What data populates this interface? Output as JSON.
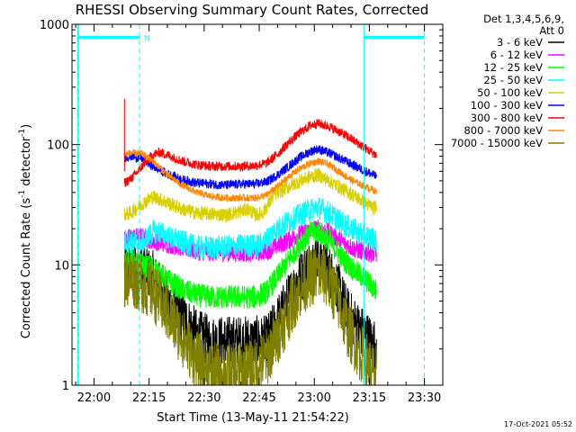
{
  "chart_data": {
    "type": "line",
    "title": "RHESSI Observing Summary Count Rates, Corrected",
    "xlabel": "Start Time (13-May-11 21:54:22)",
    "ylabel": "Corrected Count Rate (s-1 detector-1)",
    "ylabel_parts": {
      "main": "Corrected Count Rate (s",
      "exp1": "-1",
      "mid": " detector",
      "exp2": "-1",
      "close": ")"
    },
    "y_scale": "log",
    "ylim": [
      1,
      1000
    ],
    "xlim_minutes": [
      -6,
      95
    ],
    "x_ticks": [
      {
        "label": "22:00",
        "minute": 0
      },
      {
        "label": "22:15",
        "minute": 15
      },
      {
        "label": "22:30",
        "minute": 30
      },
      {
        "label": "22:45",
        "minute": 45
      },
      {
        "label": "23:00",
        "minute": 60
      },
      {
        "label": "23:15",
        "minute": 75
      },
      {
        "label": "23:30",
        "minute": 90
      }
    ],
    "y_ticks": [
      {
        "label": "1",
        "value": 1
      },
      {
        "label": "10",
        "value": 10
      },
      {
        "label": "100",
        "value": 100
      },
      {
        "label": "1000",
        "value": 1000
      }
    ],
    "legend": {
      "header": [
        "Det 1,3,4,5,6,9,",
        "Att 0"
      ],
      "placement": "right"
    },
    "series": [
      {
        "name": "3 - 6 keV",
        "color": "#000000",
        "noise": 0.22,
        "values": [
          [
            8.3,
            9
          ],
          [
            10,
            10
          ],
          [
            13,
            9.5
          ],
          [
            16,
            8
          ],
          [
            20,
            5
          ],
          [
            24,
            3.8
          ],
          [
            28,
            2.6
          ],
          [
            32,
            2.3
          ],
          [
            36,
            2.3
          ],
          [
            40,
            2.3
          ],
          [
            44,
            2.3
          ],
          [
            47,
            2.3
          ],
          [
            49,
            3
          ],
          [
            52,
            4.5
          ],
          [
            55,
            7
          ],
          [
            58,
            9.5
          ],
          [
            61,
            11
          ],
          [
            63,
            10
          ],
          [
            66,
            7
          ],
          [
            69,
            4
          ],
          [
            72,
            3
          ],
          [
            76,
            2.2
          ],
          [
            77,
            2.2
          ]
        ]
      },
      {
        "name": "6 - 12 keV",
        "color": "#ff00ff",
        "noise": 0.08,
        "values": [
          [
            8.3,
            16
          ],
          [
            10,
            17
          ],
          [
            13,
            17
          ],
          [
            16,
            16
          ],
          [
            20,
            15
          ],
          [
            24,
            14
          ],
          [
            28,
            13
          ],
          [
            32,
            12.8
          ],
          [
            36,
            12.8
          ],
          [
            40,
            12.6
          ],
          [
            44,
            12.8
          ],
          [
            47,
            13
          ],
          [
            50,
            14.5
          ],
          [
            53,
            16
          ],
          [
            56,
            18
          ],
          [
            59,
            19.5
          ],
          [
            61,
            20
          ],
          [
            64,
            18.5
          ],
          [
            67,
            16
          ],
          [
            70,
            14
          ],
          [
            73,
            13
          ],
          [
            76,
            12.5
          ],
          [
            77,
            12.5
          ]
        ]
      },
      {
        "name": "12 - 25 keV",
        "color": "#00ff00",
        "noise": 0.1,
        "values": [
          [
            8.3,
            10
          ],
          [
            10,
            11
          ],
          [
            13,
            10
          ],
          [
            16,
            9.5
          ],
          [
            20,
            7.5
          ],
          [
            24,
            6.2
          ],
          [
            28,
            5.6
          ],
          [
            32,
            5.4
          ],
          [
            36,
            5.4
          ],
          [
            40,
            5.4
          ],
          [
            44,
            5.4
          ],
          [
            47,
            6
          ],
          [
            50,
            8
          ],
          [
            53,
            11
          ],
          [
            56,
            15
          ],
          [
            59,
            18.5
          ],
          [
            61,
            19
          ],
          [
            64,
            16
          ],
          [
            67,
            12
          ],
          [
            70,
            9.5
          ],
          [
            73,
            8
          ],
          [
            76,
            6.5
          ],
          [
            77,
            6
          ]
        ]
      },
      {
        "name": "25 - 50 keV",
        "color": "#00ffff",
        "noise": 0.1,
        "values": [
          [
            8.3,
            16
          ],
          [
            10,
            15.5
          ],
          [
            12,
            15
          ],
          [
            14,
            16
          ],
          [
            16,
            19
          ],
          [
            18,
            18.5
          ],
          [
            20,
            17
          ],
          [
            24,
            15.5
          ],
          [
            28,
            14
          ],
          [
            32,
            14
          ],
          [
            36,
            14
          ],
          [
            40,
            14.5
          ],
          [
            44,
            14.5
          ],
          [
            46,
            15
          ],
          [
            49,
            19
          ],
          [
            52,
            22
          ],
          [
            55,
            25
          ],
          [
            58,
            28
          ],
          [
            61,
            30
          ],
          [
            64,
            27
          ],
          [
            67,
            23
          ],
          [
            70,
            20
          ],
          [
            73,
            18
          ],
          [
            76,
            16.5
          ],
          [
            77,
            16
          ]
        ]
      },
      {
        "name": "50 - 100 keV",
        "color": "#d8d000",
        "noise": 0.06,
        "values": [
          [
            8.3,
            26
          ],
          [
            10,
            27
          ],
          [
            13,
            32
          ],
          [
            16,
            37
          ],
          [
            20,
            33
          ],
          [
            24,
            29
          ],
          [
            28,
            27
          ],
          [
            32,
            26.5
          ],
          [
            36,
            26
          ],
          [
            40,
            28
          ],
          [
            42,
            29
          ],
          [
            44,
            26
          ],
          [
            46,
            27
          ],
          [
            49,
            38
          ],
          [
            52,
            43
          ],
          [
            55,
            48
          ],
          [
            58,
            53
          ],
          [
            61,
            56
          ],
          [
            64,
            50
          ],
          [
            67,
            44
          ],
          [
            70,
            39
          ],
          [
            73,
            34
          ],
          [
            76,
            30
          ],
          [
            77,
            30
          ]
        ]
      },
      {
        "name": "100 - 300 keV",
        "color": "#0000ff",
        "noise": 0.04,
        "values": [
          [
            8.3,
            78
          ],
          [
            10,
            80
          ],
          [
            13,
            77
          ],
          [
            16,
            66
          ],
          [
            20,
            57
          ],
          [
            24,
            51
          ],
          [
            28,
            48
          ],
          [
            32,
            47
          ],
          [
            36,
            46
          ],
          [
            40,
            47
          ],
          [
            44,
            47
          ],
          [
            47,
            49
          ],
          [
            50,
            56
          ],
          [
            53,
            66
          ],
          [
            56,
            78
          ],
          [
            59,
            88
          ],
          [
            61,
            92
          ],
          [
            64,
            85
          ],
          [
            67,
            77
          ],
          [
            70,
            69
          ],
          [
            73,
            62
          ],
          [
            76,
            56
          ],
          [
            77,
            54
          ]
        ]
      },
      {
        "name": "300 - 800 keV",
        "color": "#ff0000",
        "noise": 0.04,
        "values": [
          [
            8.3,
            48
          ],
          [
            10,
            52
          ],
          [
            12,
            60
          ],
          [
            14,
            72
          ],
          [
            16,
            82
          ],
          [
            18,
            86
          ],
          [
            20,
            82
          ],
          [
            24,
            73
          ],
          [
            28,
            68
          ],
          [
            32,
            66
          ],
          [
            36,
            66
          ],
          [
            40,
            66
          ],
          [
            44,
            67
          ],
          [
            47,
            70
          ],
          [
            50,
            83
          ],
          [
            53,
            104
          ],
          [
            56,
            125
          ],
          [
            59,
            145
          ],
          [
            61,
            150
          ],
          [
            64,
            142
          ],
          [
            67,
            127
          ],
          [
            70,
            112
          ],
          [
            73,
            97
          ],
          [
            76,
            85
          ],
          [
            77,
            82
          ]
        ]
      },
      {
        "name": "800 - 7000 keV",
        "color": "#ff8800",
        "noise": 0.03,
        "values": [
          [
            8.3,
            82
          ],
          [
            10,
            85
          ],
          [
            13,
            84
          ],
          [
            16,
            73
          ],
          [
            20,
            56
          ],
          [
            24,
            46
          ],
          [
            28,
            40
          ],
          [
            32,
            37
          ],
          [
            36,
            36
          ],
          [
            40,
            36
          ],
          [
            44,
            36
          ],
          [
            47,
            38
          ],
          [
            50,
            45
          ],
          [
            53,
            54
          ],
          [
            56,
            63
          ],
          [
            59,
            70
          ],
          [
            61,
            73
          ],
          [
            64,
            68
          ],
          [
            67,
            59
          ],
          [
            70,
            51
          ],
          [
            73,
            46
          ],
          [
            76,
            42
          ],
          [
            77,
            40
          ]
        ]
      },
      {
        "name": "7000 - 15000 keV",
        "color": "#808000",
        "noise": 0.25,
        "values": [
          [
            8.3,
            7.5
          ],
          [
            10,
            8
          ],
          [
            13,
            7
          ],
          [
            16,
            6
          ],
          [
            20,
            4
          ],
          [
            24,
            2.5
          ],
          [
            28,
            1.6
          ],
          [
            32,
            1.3
          ],
          [
            36,
            1.25
          ],
          [
            40,
            1.3
          ],
          [
            44,
            1.4
          ],
          [
            47,
            1.7
          ],
          [
            49,
            2.2
          ],
          [
            52,
            3.5
          ],
          [
            55,
            5.5
          ],
          [
            58,
            7.5
          ],
          [
            61,
            8.5
          ],
          [
            63,
            8
          ],
          [
            66,
            5.5
          ],
          [
            69,
            3
          ],
          [
            72,
            2
          ],
          [
            76,
            1.3
          ],
          [
            77,
            1.2
          ]
        ]
      }
    ],
    "annotations": {
      "saa_bar_color": "#00ffff",
      "saa_bar_value": 780,
      "saa_bars_minutes": [
        [
          -4.4,
          12.5
        ],
        [
          73.5,
          90
        ]
      ],
      "night_text": "N",
      "night_text_minute": 13.1,
      "dashed_lines_minutes": [
        -4.2,
        12.4,
        90
      ],
      "solid_lines_minutes": [
        -4.4,
        73.5
      ],
      "spike": {
        "minute": 8.3,
        "value": 240
      }
    },
    "grid": false
  },
  "timestamp": "17-Oct-2021 05:52"
}
